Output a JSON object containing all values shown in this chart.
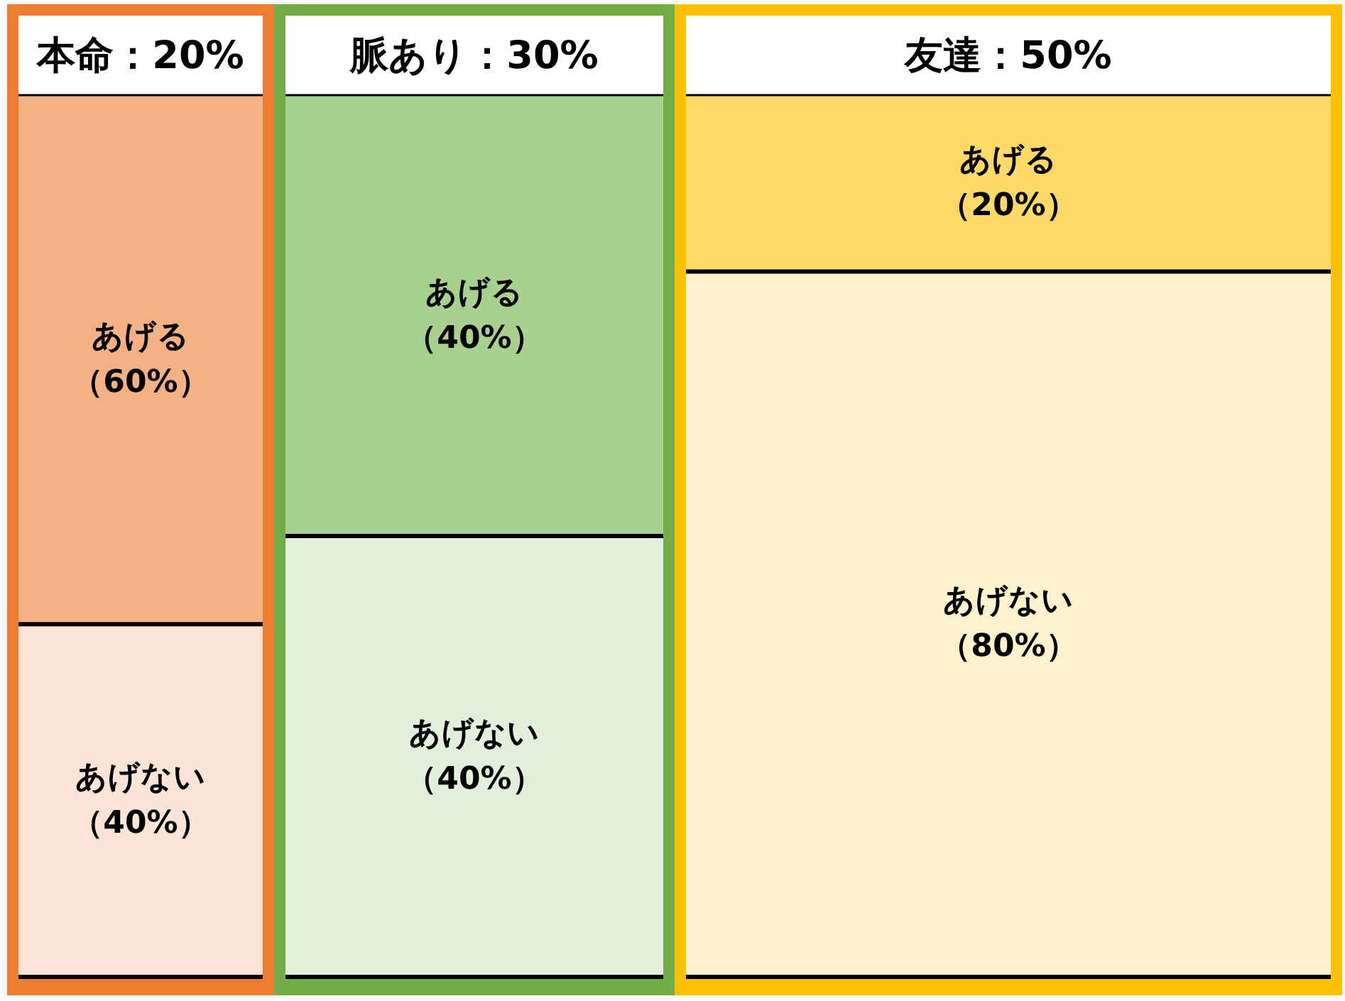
{
  "chart_data": {
    "type": "other",
    "categories": [
      "本命",
      "脈あり",
      "友達"
    ],
    "values": [
      20,
      30,
      50
    ],
    "value_labels": [
      "：20%",
      "：30%",
      "：50%"
    ],
    "series": [
      {
        "name": "あげない",
        "values": [
          40,
          40,
          80
        ],
        "colors": [
          "#fce4d6",
          "#e2efda",
          "#fff2cc"
        ],
        "value_labels": [
          "（40%）",
          "（40%）",
          "（80%）"
        ]
      },
      {
        "name": "あげる",
        "values": [
          60,
          40,
          20
        ],
        "colors": [
          "#f4b183",
          "#a9d18e",
          "#ffd966"
        ],
        "value_labels": [
          "（60%）",
          "（40%）",
          "（20%）"
        ]
      }
    ]
  }
}
